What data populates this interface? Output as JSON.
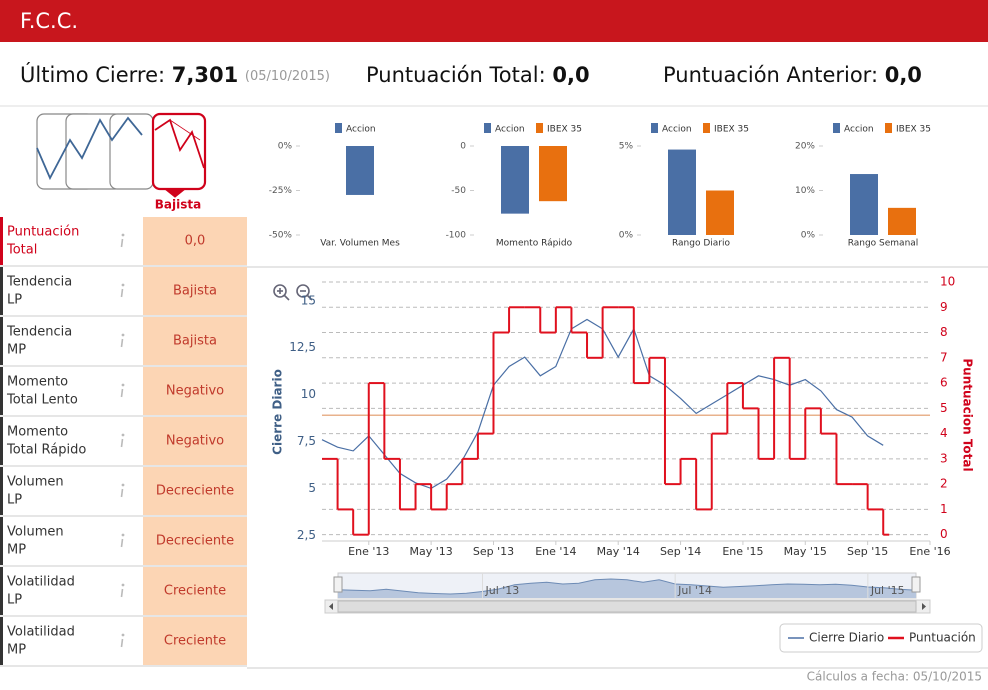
{
  "header": {
    "title": "F.C.C."
  },
  "summary": {
    "last_close_label": "Último Cierre:",
    "last_close_value": "7,301",
    "last_close_date": "(05/10/2015)",
    "total_label": "Puntuación Total:",
    "total_value": "0,0",
    "previous_label": "Puntuación Anterior:",
    "previous_value": "0,0"
  },
  "trend": {
    "label": "Bajista"
  },
  "indicators": [
    {
      "name": [
        "Puntuación",
        "Total"
      ],
      "value": "0,0"
    },
    {
      "name": [
        "Tendencia",
        "LP"
      ],
      "value": "Bajista"
    },
    {
      "name": [
        "Tendencia",
        "MP"
      ],
      "value": "Bajista"
    },
    {
      "name": [
        "Momento",
        "Total Lento"
      ],
      "value": "Negativo"
    },
    {
      "name": [
        "Momento",
        "Total Rápido"
      ],
      "value": "Negativo"
    },
    {
      "name": [
        "Volumen",
        "LP"
      ],
      "value": "Decreciente"
    },
    {
      "name": [
        "Volumen",
        "MP"
      ],
      "value": "Decreciente"
    },
    {
      "name": [
        "Volatilidad",
        "LP"
      ],
      "value": "Creciente"
    },
    {
      "name": [
        "Volatilidad",
        "MP"
      ],
      "value": "Creciente"
    }
  ],
  "chart_data": [
    {
      "type": "bar",
      "categories": [
        "Var. Volumen Mes"
      ],
      "series": [
        {
          "name": "Accion",
          "color": "#4a6fa5",
          "values": [
            -27.5
          ]
        }
      ],
      "ylim": [
        -50,
        0
      ],
      "yticks": [
        {
          "value": 0,
          "label": "0%"
        },
        {
          "value": -25,
          "label": "-25%"
        },
        {
          "value": -50,
          "label": "-50%"
        }
      ]
    },
    {
      "type": "bar",
      "categories": [
        "Momento Rápido"
      ],
      "series": [
        {
          "name": "Accion",
          "color": "#4a6fa5",
          "values": [
            -76
          ]
        },
        {
          "name": "IBEX 35",
          "color": "#e8700f",
          "values": [
            -62
          ]
        }
      ],
      "ylim": [
        -100,
        0
      ],
      "yticks": [
        0,
        -50,
        -100
      ]
    },
    {
      "type": "bar",
      "categories": [
        "Rango Diario"
      ],
      "series": [
        {
          "name": "Accion",
          "color": "#4a6fa5",
          "values": [
            4.8
          ]
        },
        {
          "name": "IBEX 35",
          "color": "#e8700f",
          "values": [
            2.5
          ]
        }
      ],
      "ylim": [
        0,
        5
      ],
      "yticks": [
        {
          "value": 0,
          "label": "0%"
        },
        {
          "value": 5,
          "label": "5%"
        }
      ]
    },
    {
      "type": "bar",
      "categories": [
        "Rango Semanal"
      ],
      "series": [
        {
          "name": "Accion",
          "color": "#4a6fa5",
          "values": [
            13.7
          ]
        },
        {
          "name": "IBEX 35",
          "color": "#e8700f",
          "values": [
            6.1
          ]
        }
      ],
      "ylim": [
        0,
        20
      ],
      "yticks": [
        {
          "value": 0,
          "label": "0%"
        },
        {
          "value": 10,
          "label": "10%"
        },
        {
          "value": 20,
          "label": "20%"
        }
      ]
    },
    {
      "type": "line",
      "x": [
        "2012-10",
        "2012-11",
        "2012-12",
        "2013-01",
        "2013-02",
        "2013-03",
        "2013-04",
        "2013-05",
        "2013-06",
        "2013-07",
        "2013-08",
        "2013-09",
        "2013-10",
        "2013-11",
        "2013-12",
        "2014-01",
        "2014-02",
        "2014-03",
        "2014-04",
        "2014-05",
        "2014-06",
        "2014-07",
        "2014-08",
        "2014-09",
        "2014-10",
        "2014-11",
        "2014-12",
        "2015-01",
        "2015-02",
        "2015-03",
        "2015-04",
        "2015-05",
        "2015-06",
        "2015-07",
        "2015-08",
        "2015-09",
        "2015-10"
      ],
      "series": [
        {
          "name": "Cierre Diario",
          "color": "#4a6fa5",
          "values": [
            7.6,
            7.2,
            7.0,
            7.8,
            6.8,
            5.8,
            5.3,
            5.0,
            5.5,
            6.5,
            8.0,
            10.5,
            11.5,
            12.0,
            11.0,
            11.5,
            13.5,
            14.0,
            13.5,
            12.0,
            13.5,
            11.0,
            10.5,
            9.8,
            9.0,
            9.5,
            10.0,
            10.5,
            11.0,
            10.8,
            10.5,
            10.8,
            10.2,
            9.2,
            8.8,
            7.8,
            7.3
          ]
        },
        {
          "name": "Puntuación",
          "color": "#e0101e",
          "axis": "y2",
          "values": [
            3,
            1,
            0,
            6,
            3,
            1,
            2,
            1,
            2,
            3,
            4,
            8,
            9,
            9,
            8,
            9,
            8,
            7,
            9,
            9,
            6,
            7,
            2,
            3,
            1,
            4,
            6,
            5,
            3,
            7,
            3,
            5,
            4,
            2,
            2,
            1,
            0
          ]
        }
      ],
      "ylabel": "Cierre Diario",
      "y2label": "Puntuacion Total",
      "xlim": [
        "2012-10",
        "2016-01"
      ],
      "xticks": [
        {
          "value": "2013-01",
          "label": "Ene '13"
        },
        {
          "value": "2013-05",
          "label": "May '13"
        },
        {
          "value": "2013-09",
          "label": "Sep '13"
        },
        {
          "value": "2014-01",
          "label": "Ene '14"
        },
        {
          "value": "2014-05",
          "label": "May '14"
        },
        {
          "value": "2014-09",
          "label": "Sep '14"
        },
        {
          "value": "2015-01",
          "label": "Ene '15"
        },
        {
          "value": "2015-05",
          "label": "May '15"
        },
        {
          "value": "2015-09",
          "label": "Sep '15"
        },
        {
          "value": "2016-01",
          "label": "Ene '16"
        }
      ],
      "ylim": [
        2.2,
        16
      ],
      "yticks": [
        {
          "value": 2.5,
          "label": "2,5"
        },
        5,
        {
          "value": 7.5,
          "label": "7,5"
        },
        10,
        {
          "value": 12.5,
          "label": "12,5"
        },
        15
      ],
      "y2lim": [
        -0.25,
        10
      ],
      "y2ticks": [
        0,
        1,
        2,
        3,
        4,
        5,
        6,
        7,
        8,
        9,
        10
      ],
      "grid": true,
      "reference_line": 8.9,
      "reference_color": "#e8b28c",
      "navigator": {
        "ticks": [
          {
            "value": "2013-07",
            "label": "Jul '13"
          },
          {
            "value": "2014-07",
            "label": "Jul '14"
          },
          {
            "value": "2015-07",
            "label": "Jul '15"
          }
        ]
      },
      "legend": "bottom-right"
    }
  ],
  "footer": {
    "text": "Cálculos a fecha: 05/10/2015"
  }
}
